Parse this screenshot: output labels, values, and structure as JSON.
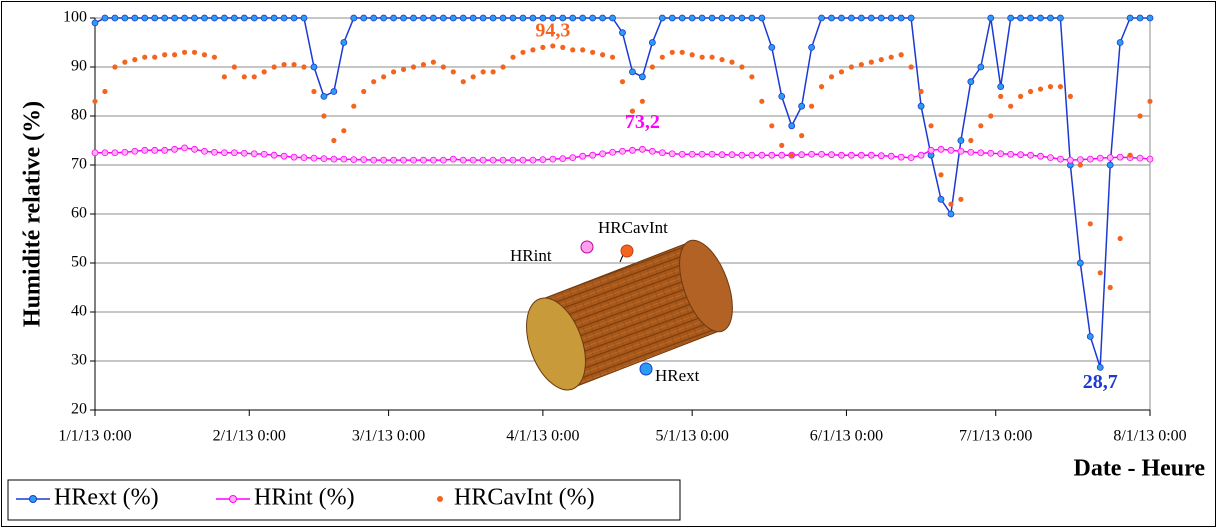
{
  "chart_data": {
    "type": "line",
    "y_label": "Humidité relative (%)",
    "x_label": "Date - Heure",
    "ylim": [
      20,
      100
    ],
    "yticks": [
      20,
      30,
      40,
      50,
      60,
      70,
      80,
      90,
      100
    ],
    "xlim": [
      "2013-01-01",
      "2013-08-01"
    ],
    "xticks": [
      {
        "value": "2013-01-01",
        "label": "1/1/13 0:00"
      },
      {
        "value": "2013-02-01",
        "label": "2/1/13 0:00"
      },
      {
        "value": "2013-03-01",
        "label": "3/1/13 0:00"
      },
      {
        "value": "2013-04-01",
        "label": "4/1/13 0:00"
      },
      {
        "value": "2013-05-01",
        "label": "5/1/13 0:00"
      },
      {
        "value": "2013-06-01",
        "label": "6/1/13 0:00"
      },
      {
        "value": "2013-07-01",
        "label": "7/1/13 0:00"
      },
      {
        "value": "2013-08-01",
        "label": "8/1/13 0:00"
      }
    ],
    "grid": true,
    "legend": "bottom",
    "x": [
      "2013-01-01",
      "2013-01-03",
      "2013-01-05",
      "2013-01-07",
      "2013-01-09",
      "2013-01-11",
      "2013-01-13",
      "2013-01-15",
      "2013-01-17",
      "2013-01-19",
      "2013-01-21",
      "2013-01-23",
      "2013-01-25",
      "2013-01-27",
      "2013-01-29",
      "2013-01-31",
      "2013-02-02",
      "2013-02-04",
      "2013-02-06",
      "2013-02-08",
      "2013-02-10",
      "2013-02-12",
      "2013-02-14",
      "2013-02-16",
      "2013-02-18",
      "2013-02-20",
      "2013-02-22",
      "2013-02-24",
      "2013-02-26",
      "2013-02-28",
      "2013-03-02",
      "2013-03-04",
      "2013-03-06",
      "2013-03-08",
      "2013-03-10",
      "2013-03-12",
      "2013-03-14",
      "2013-03-16",
      "2013-03-18",
      "2013-03-20",
      "2013-03-22",
      "2013-03-24",
      "2013-03-26",
      "2013-03-28",
      "2013-03-30",
      "2013-04-01",
      "2013-04-03",
      "2013-04-05",
      "2013-04-07",
      "2013-04-09",
      "2013-04-11",
      "2013-04-13",
      "2013-04-15",
      "2013-04-17",
      "2013-04-19",
      "2013-04-21",
      "2013-04-23",
      "2013-04-25",
      "2013-04-27",
      "2013-04-29",
      "2013-05-01",
      "2013-05-03",
      "2013-05-05",
      "2013-05-07",
      "2013-05-09",
      "2013-05-11",
      "2013-05-13",
      "2013-05-15",
      "2013-05-17",
      "2013-05-19",
      "2013-05-21",
      "2013-05-23",
      "2013-05-25",
      "2013-05-27",
      "2013-05-29",
      "2013-05-31",
      "2013-06-02",
      "2013-06-04",
      "2013-06-06",
      "2013-06-08",
      "2013-06-10",
      "2013-06-12",
      "2013-06-14",
      "2013-06-16",
      "2013-06-18",
      "2013-06-20",
      "2013-06-22",
      "2013-06-24",
      "2013-06-26",
      "2013-06-28",
      "2013-06-30",
      "2013-07-02",
      "2013-07-04",
      "2013-07-06",
      "2013-07-08",
      "2013-07-10",
      "2013-07-12",
      "2013-07-14",
      "2013-07-16",
      "2013-07-18",
      "2013-07-20",
      "2013-07-22",
      "2013-07-24",
      "2013-07-26",
      "2013-07-28",
      "2013-07-30",
      "2013-08-01"
    ],
    "series": [
      {
        "name": "HRext (%)",
        "color": "#1c39d4",
        "marker_color": "#2b9cf0",
        "line": true,
        "values": [
          99,
          100,
          100,
          100,
          100,
          100,
          100,
          100,
          100,
          100,
          100,
          100,
          100,
          100,
          100,
          100,
          100,
          100,
          100,
          100,
          100,
          100,
          90,
          84,
          85,
          95,
          100,
          100,
          100,
          100,
          100,
          100,
          100,
          100,
          100,
          100,
          100,
          100,
          100,
          100,
          100,
          100,
          100,
          100,
          100,
          100,
          100,
          100,
          100,
          100,
          100,
          100,
          100,
          97,
          89,
          88,
          95,
          100,
          100,
          100,
          100,
          100,
          100,
          100,
          100,
          100,
          100,
          100,
          94,
          84,
          78,
          82,
          94,
          100,
          100,
          100,
          100,
          100,
          100,
          100,
          100,
          100,
          100,
          82,
          72,
          63,
          60,
          75,
          87,
          90,
          100,
          86,
          100,
          100,
          100,
          100,
          100,
          100,
          70,
          50,
          35,
          28.7,
          70,
          95,
          100,
          100,
          100
        ]
      },
      {
        "name": "HRint (%)",
        "color": "#ff00ff",
        "marker_color": "#ffb0f0",
        "line": true,
        "values": [
          72.5,
          72.5,
          72.5,
          72.6,
          72.8,
          73,
          73,
          73,
          73.2,
          73.5,
          73.2,
          72.8,
          72.6,
          72.5,
          72.5,
          72.4,
          72.3,
          72.2,
          72,
          71.8,
          71.6,
          71.5,
          71.4,
          71.3,
          71.2,
          71.2,
          71.1,
          71.1,
          71,
          71,
          71,
          71,
          71,
          71,
          71,
          71,
          71.2,
          71,
          71,
          71,
          71,
          71,
          71,
          71,
          71,
          71.1,
          71.2,
          71.3,
          71.5,
          71.8,
          72,
          72.3,
          72.6,
          72.8,
          73,
          73.2,
          72.8,
          72.5,
          72.3,
          72.2,
          72.2,
          72.2,
          72.2,
          72.1,
          72.1,
          72,
          72,
          72,
          72,
          72,
          72,
          72.1,
          72.2,
          72.2,
          72.1,
          72,
          72,
          72,
          72,
          71.9,
          71.8,
          71.6,
          71.5,
          72,
          73,
          73.2,
          73,
          72.8,
          72.6,
          72.5,
          72.4,
          72.3,
          72.2,
          72.1,
          72,
          71.8,
          71.5,
          71.2,
          71,
          71.1,
          71.2,
          71.4,
          71.5,
          71.6,
          71.5,
          71.4,
          71.2
        ]
      },
      {
        "name": "HRCavInt (%)",
        "color": "#f4641e",
        "marker_color": "#f4641e",
        "line": false,
        "values": [
          83,
          85,
          90,
          91,
          91.5,
          92,
          92,
          92.5,
          92.5,
          93,
          93,
          92.5,
          92,
          88,
          90,
          88,
          88,
          89,
          90,
          90.5,
          90.5,
          90,
          85,
          80,
          75,
          77,
          82,
          85,
          87,
          88,
          89,
          89.5,
          90,
          90.5,
          91,
          90,
          89,
          87,
          88,
          89,
          89,
          90,
          92,
          93,
          93.5,
          94,
          94.3,
          94,
          93.5,
          93.5,
          93,
          92.5,
          92,
          87,
          81,
          83,
          90,
          92,
          93,
          93,
          92.5,
          92,
          92,
          91.5,
          91,
          90,
          88,
          83,
          78,
          74,
          72,
          76,
          82,
          86,
          88,
          89,
          90,
          90.5,
          91,
          91.5,
          92,
          92.5,
          90,
          85,
          78,
          68,
          62,
          63,
          75,
          78,
          80,
          84,
          82,
          84,
          85,
          85.5,
          86,
          86,
          84,
          70,
          58,
          48,
          45,
          55,
          72,
          80,
          83
        ]
      }
    ],
    "annotations": [
      {
        "text": "94,3",
        "x": "2013-04-03",
        "y": 94.3,
        "color": "#f4641e"
      },
      {
        "text": "73,2",
        "x": "2013-04-21",
        "y": 73.2,
        "color": "#ff00ff"
      },
      {
        "text": "28,7",
        "x": "2013-07-22",
        "y": 28.7,
        "color": "#1c39d4"
      }
    ]
  },
  "inset_labels": {
    "int": "HRint",
    "cav": "HRCavInt",
    "ext": "HRext"
  }
}
